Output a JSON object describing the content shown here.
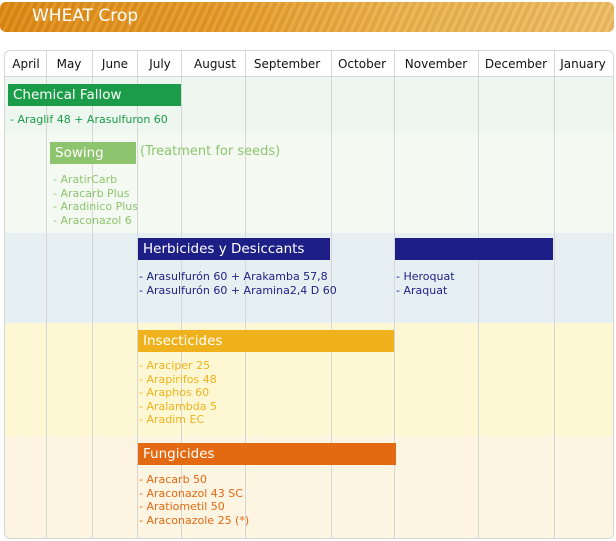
{
  "header": {
    "title": "WHEAT Crop"
  },
  "months": [
    "April",
    "May",
    "June",
    "July",
    "August",
    "September",
    "October",
    "November",
    "December",
    "January"
  ],
  "sections": {
    "chemical_fallow": {
      "label": "Chemical Fallow",
      "color": "#1b9c48",
      "items": [
        "- Araglif 48 + Arasulfuron 60"
      ]
    },
    "sowing": {
      "label": "Sowing",
      "note": "(Treatment for seeds)",
      "color": "#8dc56f",
      "items": [
        "- AratirCarb",
        "- Aracarb Plus",
        "- Aradinico Plus",
        "- Araconazol 6"
      ]
    },
    "herbicides": {
      "label": "Herbicides y Desiccants",
      "color": "#1d1f86",
      "items": [
        "- Arasulfurón 60 + Arakamba 57,8",
        "- Arasulfurón 60 + Aramina2,4 D 60"
      ],
      "items_late": [
        "- Heroquat",
        "- Araquat"
      ]
    },
    "insecticides": {
      "label": "Insecticides",
      "color": "#f0b21c",
      "items": [
        "- Araciper 25",
        "- Arapirifos 48",
        "- Araphos 60",
        "- Aralambda 5",
        "- Aradim EC"
      ]
    },
    "fungicides": {
      "label": "Fungicides",
      "color": "#e36a13",
      "items": [
        "- Aracarb 50",
        "- Araconazol 43 SC",
        "- Aratiometil 50",
        "- Araconazole 25 (*)"
      ]
    }
  }
}
